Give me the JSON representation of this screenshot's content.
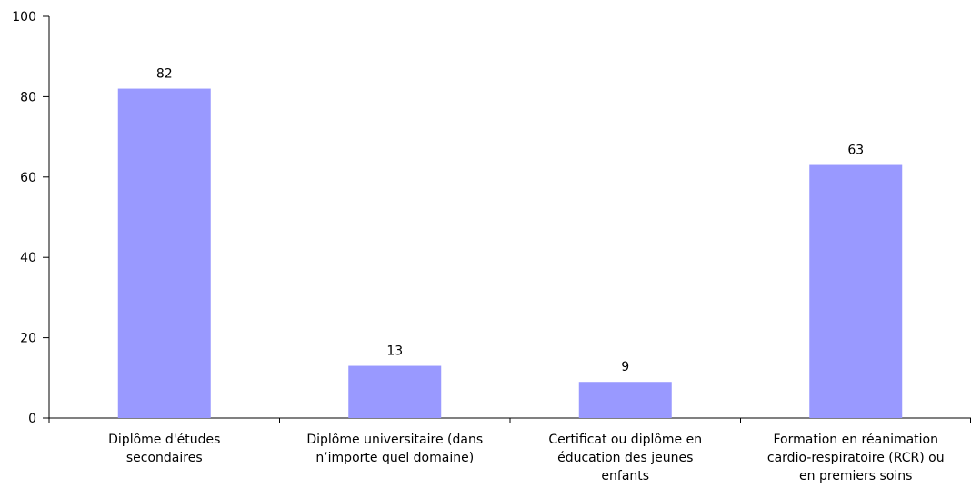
{
  "chart_data": {
    "type": "bar",
    "categories": [
      [
        "Diplôme d'études",
        "secondaires"
      ],
      [
        "Diplôme universitaire (dans",
        "n’importe quel domaine)"
      ],
      [
        "Certificat ou diplôme en",
        "éducation des jeunes",
        "enfants"
      ],
      [
        "Formation en réanimation",
        "cardio-respiratoire (RCR) ou",
        "en premiers soins"
      ]
    ],
    "values": [
      82,
      13,
      9,
      63
    ],
    "data_labels": [
      "82",
      "13",
      "9",
      "63"
    ],
    "y_ticks": [
      0,
      20,
      40,
      60,
      80,
      100
    ],
    "y_tick_labels": [
      "0",
      "20",
      "40",
      "60",
      "80",
      "100"
    ],
    "ylim": [
      0,
      100
    ],
    "title": "",
    "xlabel": "",
    "ylabel": "",
    "grid": false,
    "bar_color": "#9999ff"
  }
}
